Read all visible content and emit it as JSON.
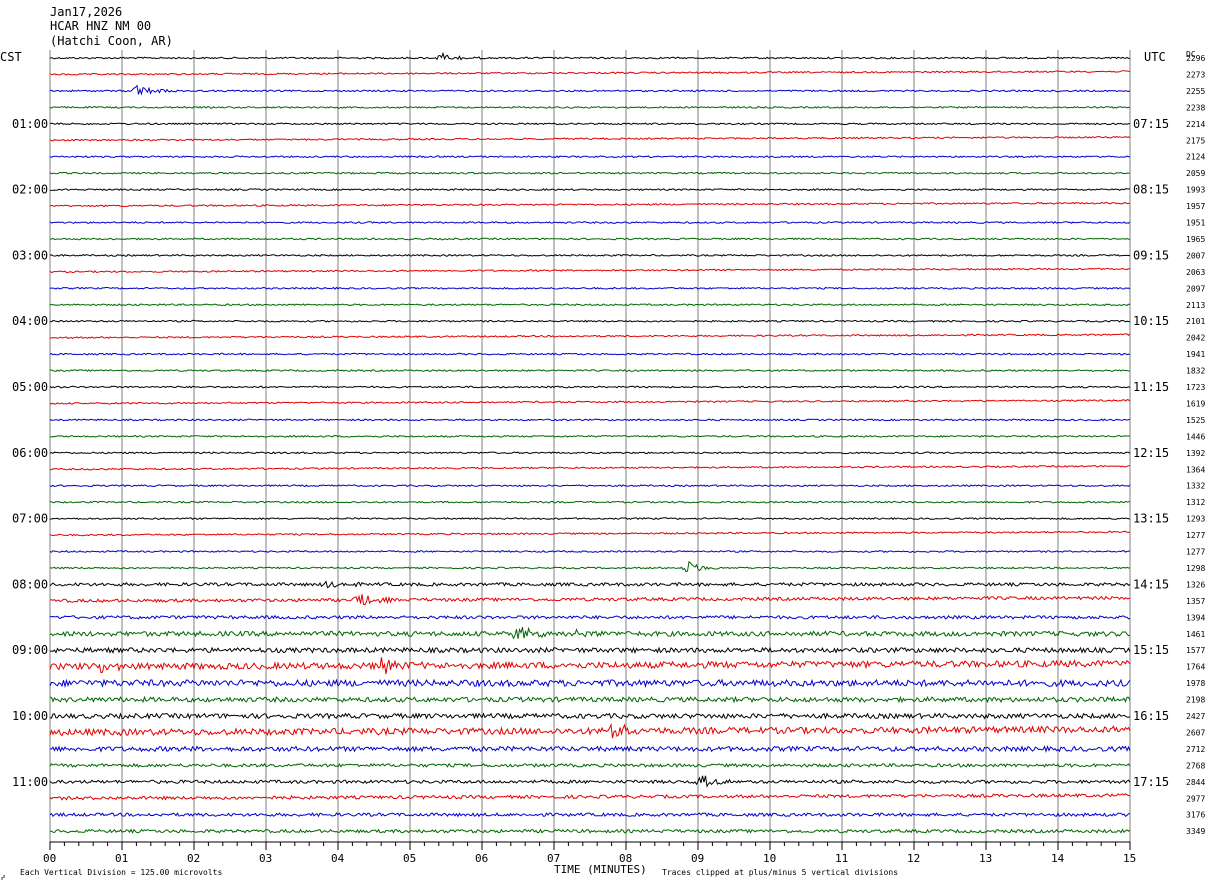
{
  "header": {
    "date": "Jan17,2026",
    "station": "HCAR HNZ NM 00",
    "location": "(Hatchi Coon, AR)"
  },
  "labels": {
    "left_tz": "CST",
    "right_tz": "UTC",
    "dc_header": "DC",
    "xlabel": "TIME (MINUTES)",
    "scale_note": "Each Vertical Division =  125.00 microvolts",
    "clip_note": "Traces clipped at plus/minus 5 vertical divisions"
  },
  "colors": {
    "trace_cycle": [
      "#000000",
      "#e00000",
      "#0000cc",
      "#006600"
    ],
    "grid": "#808080",
    "text": "#000000"
  },
  "chart_data": {
    "type": "line",
    "title": "HCAR HNZ NM 00",
    "subtitle": "(Hatchi Coon, AR)",
    "xlabel": "TIME (MINUTES)",
    "xlim": [
      0,
      15
    ],
    "x_ticks": [
      "00",
      "01",
      "02",
      "03",
      "04",
      "05",
      "06",
      "07",
      "08",
      "09",
      "10",
      "11",
      "12",
      "13",
      "14",
      "15"
    ],
    "rows_per_hour": 4,
    "row_count": 48,
    "left_hour_labels": [
      "01:00",
      "02:00",
      "03:00",
      "04:00",
      "05:00",
      "06:00",
      "07:00",
      "08:00",
      "09:00",
      "10:00",
      "11:00"
    ],
    "right_hour_labels": [
      "07:15",
      "08:15",
      "09:15",
      "10:15",
      "11:15",
      "12:15",
      "13:15",
      "14:15",
      "15:15",
      "16:15",
      "17:15"
    ],
    "dc_offsets": [
      2296,
      2273,
      2255,
      2238,
      2214,
      2175,
      2124,
      2059,
      1993,
      1957,
      1951,
      1965,
      2007,
      2063,
      2097,
      2113,
      2101,
      2042,
      1941,
      1832,
      1723,
      1619,
      1525,
      1446,
      1392,
      1364,
      1332,
      1312,
      1293,
      1277,
      1277,
      1298,
      1326,
      1357,
      1394,
      1461,
      1577,
      1764,
      1978,
      2198,
      2427,
      2607,
      2712,
      2768,
      2844,
      2977,
      3176,
      3349
    ],
    "noise_level": [
      1,
      1,
      1,
      1,
      1,
      1,
      1,
      1,
      1,
      1,
      1,
      1,
      1,
      1,
      1,
      1,
      1,
      1,
      1,
      1,
      1,
      1,
      1,
      1,
      1,
      1,
      1,
      1,
      1,
      1,
      1,
      1,
      2,
      2,
      2,
      3,
      3,
      4,
      4,
      3,
      3,
      4,
      3,
      2,
      2,
      2,
      2,
      2
    ],
    "events": [
      {
        "row": 0,
        "minute": 5.45,
        "amplitude": 5
      },
      {
        "row": 2,
        "minute": 1.2,
        "amplitude": 6
      },
      {
        "row": 31,
        "minute": 8.85,
        "amplitude": 7
      },
      {
        "row": 32,
        "minute": 3.85,
        "amplitude": 4
      },
      {
        "row": 33,
        "minute": 4.3,
        "amplitude": 8
      },
      {
        "row": 35,
        "minute": 6.5,
        "amplitude": 7
      },
      {
        "row": 35,
        "minute": 7.3,
        "amplitude": 4
      },
      {
        "row": 37,
        "minute": 0.7,
        "amplitude": 5
      },
      {
        "row": 37,
        "minute": 4.6,
        "amplitude": 7
      },
      {
        "row": 41,
        "minute": 7.8,
        "amplitude": 8
      },
      {
        "row": 44,
        "minute": 9.05,
        "amplitude": 6
      }
    ]
  }
}
